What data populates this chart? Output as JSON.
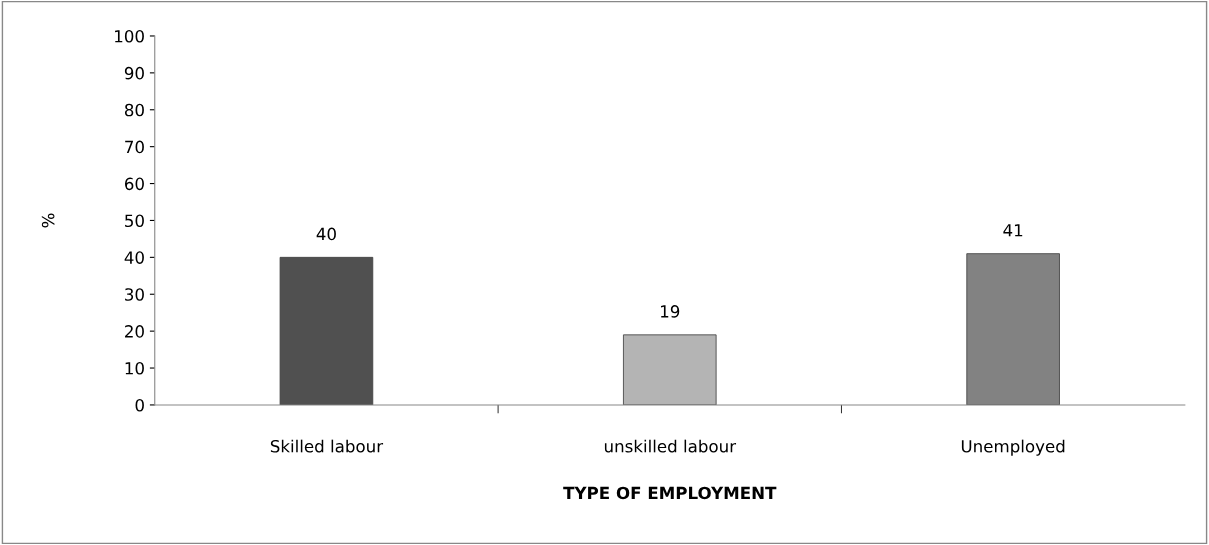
{
  "chart_data": {
    "type": "bar",
    "xlabel": "TYPE OF EMPLOYMENT",
    "ylabel": "%",
    "categories": [
      "Skilled labour",
      "unskilled labour",
      "Unemployed"
    ],
    "values": [
      40,
      19,
      41
    ],
    "colors": [
      "#505050",
      "#b4b4b4",
      "#828282"
    ],
    "ylim": [
      0,
      100
    ],
    "yticks": [
      0,
      10,
      20,
      30,
      40,
      50,
      60,
      70,
      80,
      90,
      100
    ],
    "data_labels": true,
    "grid": false,
    "legend": false
  }
}
